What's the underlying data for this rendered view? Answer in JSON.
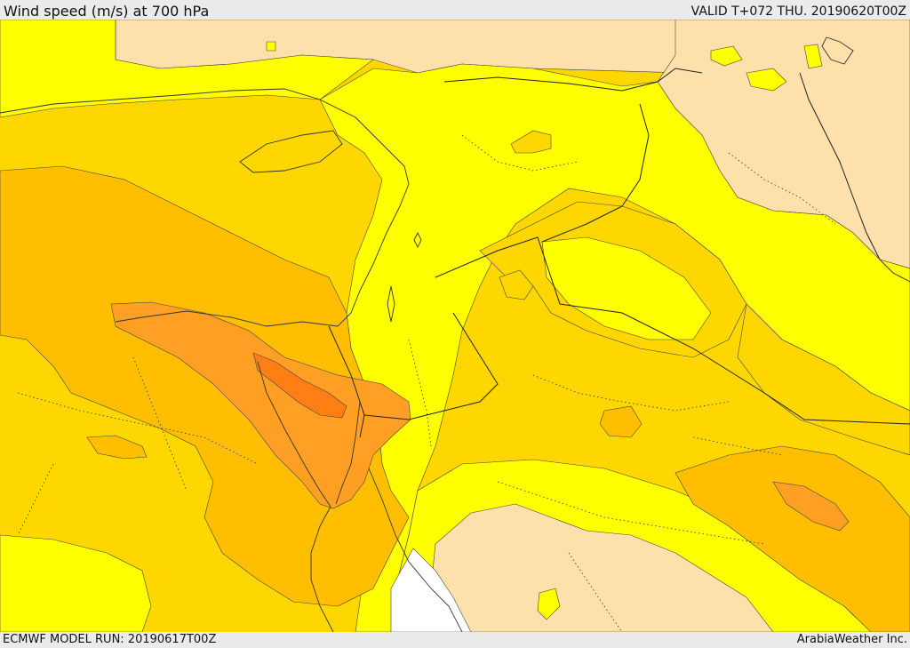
{
  "header": {
    "title": "Wind speed (m/s) at 700 hPa",
    "valid": "VALID T+072 THU. 20190620T00Z"
  },
  "footer": {
    "model_run": "ECMWF MODEL RUN: 20190617T00Z",
    "credit": "ArabiaWeather Inc."
  },
  "map": {
    "variable": "wind speed",
    "level": "700 hPa",
    "colors": {
      "land_low": "#fde0aa",
      "band_yellow": "#ffff00",
      "band_gold": "#ffd700",
      "band_amber": "#ffbf00",
      "band_orange": "#ffa024",
      "band_deep": "#ff7f14",
      "no_data": "#ffffff"
    }
  }
}
